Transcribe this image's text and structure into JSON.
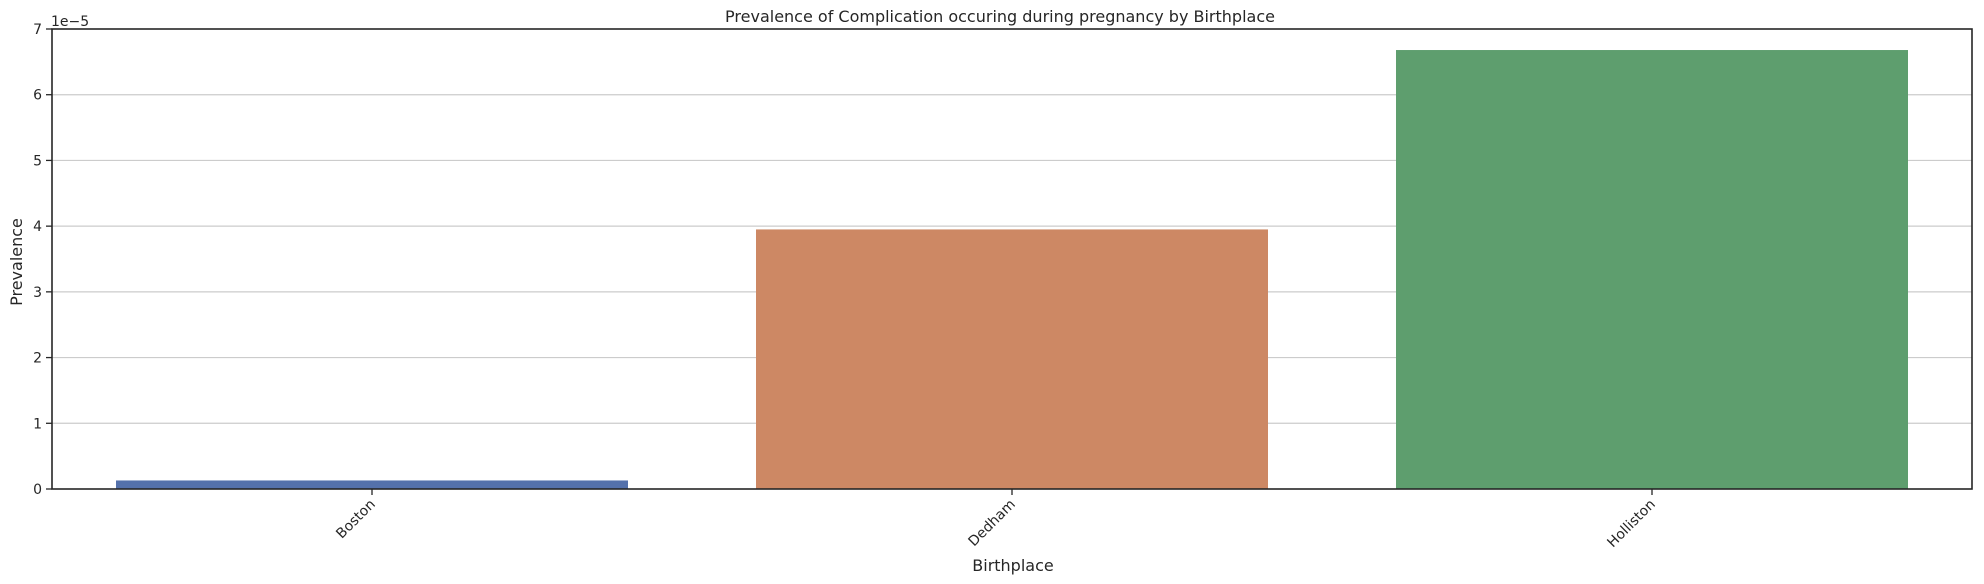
{
  "chart_data": {
    "type": "bar",
    "title": "Prevalence of Complication occuring during pregnancy by Birthplace",
    "xlabel": "Birthplace",
    "ylabel": "Prevalence",
    "y_offset_label": "1e−5",
    "categories": [
      "Boston",
      "Dedham",
      "Holliston"
    ],
    "values": [
      1.3e-06,
      3.95e-05,
      6.68e-05
    ],
    "colors": [
      "#5471ab",
      "#cd8864",
      "#5e9e6e"
    ],
    "ylim": [
      0,
      7e-05
    ],
    "yticks": [
      0,
      1e-05,
      2e-05,
      3e-05,
      4e-05,
      5e-05,
      6e-05,
      7e-05
    ],
    "ytick_labels": [
      "0",
      "1",
      "2",
      "3",
      "4",
      "5",
      "6",
      "7"
    ],
    "grid": "horizontal",
    "xtick_rotation": "45°"
  }
}
